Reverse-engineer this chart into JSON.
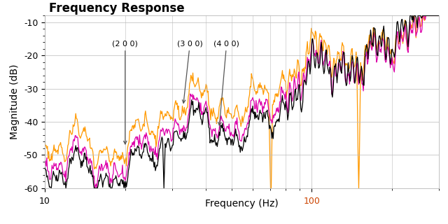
{
  "title": "Frequency Response",
  "xlabel": "Frequency (Hz)",
  "ylabel": "Magnitude (dB)",
  "ylim": [
    -60,
    -8
  ],
  "xlim": [
    10,
    300
  ],
  "yticks": [
    -60,
    -50,
    -40,
    -30,
    -20,
    -10
  ],
  "background_color": "#ffffff",
  "grid_color": "#bbbbbb",
  "line_colors": [
    "#000000",
    "#dd00aa",
    "#ff9900"
  ],
  "ann_color": "#555555",
  "title_fontsize": 12,
  "axis_fontsize": 10,
  "tick_fontsize": 9
}
